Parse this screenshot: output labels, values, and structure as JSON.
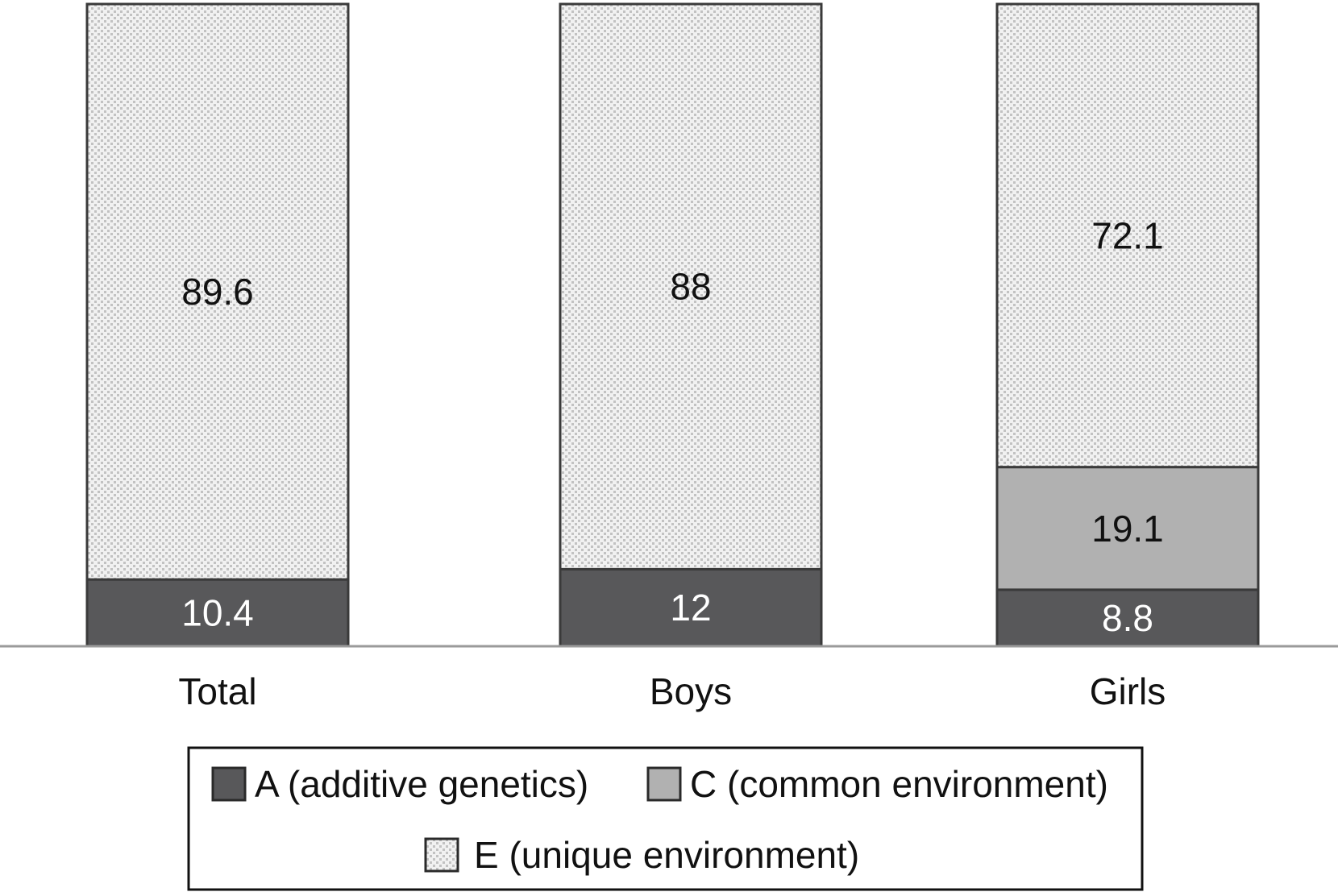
{
  "chart_data": {
    "type": "bar",
    "stacked": true,
    "categories": [
      "Total",
      "Boys",
      "Girls"
    ],
    "series": [
      {
        "key": "A",
        "name": "A (additive genetics)",
        "values": [
          10.4,
          12,
          8.8
        ],
        "labels": [
          "10.4",
          "12",
          "8.8"
        ],
        "color": "#58585a",
        "label_color": "#ffffff"
      },
      {
        "key": "C",
        "name": "C (common environment)",
        "values": [
          0,
          0,
          19.1
        ],
        "labels": [
          "",
          "",
          "19.1"
        ],
        "color": "#b1b1b1",
        "label_color": "#111111"
      },
      {
        "key": "E",
        "name": "E (unique environment)",
        "values": [
          89.6,
          88,
          72.1
        ],
        "labels": [
          "89.6",
          "88",
          "72.1"
        ],
        "color": "#ebebeb",
        "pattern": "dotted",
        "label_color": "#111111"
      }
    ],
    "ylim": [
      0,
      100
    ],
    "title": "",
    "xlabel": "",
    "ylabel": "",
    "grid": false,
    "legend_position": "bottom"
  }
}
